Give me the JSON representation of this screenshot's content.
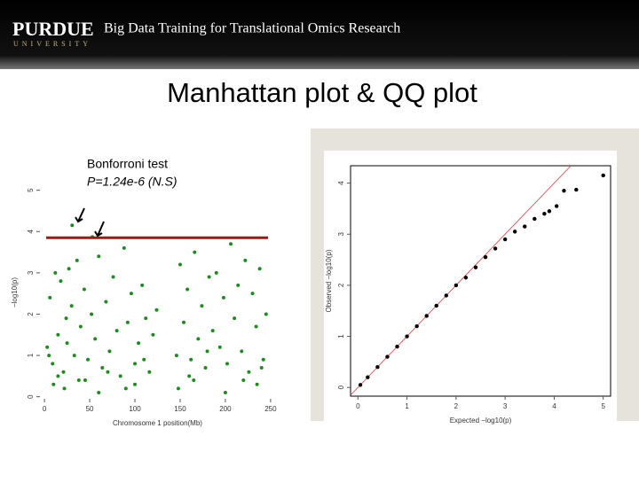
{
  "header": {
    "logo": "PURDUE",
    "logo_sub": "UNIVERSITY",
    "course": "Big Data Training for Translational Omics Research"
  },
  "title": "Manhattan plot & QQ plot",
  "chart_data": [
    {
      "type": "scatter",
      "annotation": "Bonforroni test",
      "annotation2": "P=1.24e-6 (N.S)",
      "xlabel": "Chromosome 1 position(Mb)",
      "ylabel": "−log10(p)",
      "color": "#1f8a1f",
      "threshold": 3.85,
      "threshold_color": "#a01818",
      "xlim": [
        -5,
        255
      ],
      "ylim": [
        -0.05,
        5.1
      ],
      "xticks": [
        0,
        50,
        100,
        150,
        200,
        250
      ],
      "yticks": [
        0,
        1,
        2,
        3,
        4,
        5
      ],
      "x": [
        3,
        6,
        9,
        12,
        15,
        18,
        21,
        24,
        27,
        30,
        33,
        36,
        40,
        44,
        48,
        52,
        56,
        60,
        64,
        68,
        72,
        76,
        80,
        84,
        88,
        92,
        96,
        100,
        104,
        108,
        112,
        116,
        120,
        124,
        146,
        150,
        154,
        158,
        162,
        166,
        170,
        174,
        178,
        182,
        186,
        190,
        194,
        198,
        202,
        206,
        210,
        214,
        218,
        222,
        226,
        230,
        234,
        238,
        242,
        245,
        30.6,
        53,
        10,
        22,
        38,
        60,
        100,
        148,
        165,
        200,
        235,
        5,
        15,
        25,
        45,
        70,
        90,
        110,
        160,
        180,
        220,
        240
      ],
      "values": [
        1.2,
        2.4,
        0.8,
        3.0,
        1.5,
        2.8,
        0.6,
        1.9,
        3.1,
        2.2,
        1.0,
        3.3,
        1.7,
        2.6,
        0.9,
        2.0,
        1.4,
        3.4,
        0.7,
        2.3,
        1.1,
        2.9,
        1.6,
        0.5,
        3.6,
        1.8,
        2.5,
        0.8,
        1.3,
        2.7,
        1.9,
        0.6,
        1.5,
        2.1,
        1.0,
        3.2,
        1.8,
        2.6,
        0.9,
        3.5,
        1.4,
        2.2,
        0.7,
        2.9,
        1.6,
        3.0,
        1.2,
        2.4,
        0.8,
        3.7,
        1.9,
        2.7,
        1.1,
        3.3,
        0.6,
        2.5,
        1.7,
        3.1,
        0.9,
        2.0,
        4.15,
        3.87,
        0.3,
        0.2,
        0.4,
        0.1,
        0.3,
        0.2,
        0.4,
        0.1,
        0.3,
        1.0,
        0.5,
        1.3,
        0.4,
        0.6,
        0.2,
        0.9,
        0.5,
        1.1,
        0.4,
        0.7
      ]
    },
    {
      "type": "qq",
      "xlabel": "Expected −log10(p)",
      "ylabel": "Observed −log10(p)",
      "color": "#000000",
      "line_color": "#d04040",
      "xlim": [
        -0.15,
        5.15
      ],
      "ylim": [
        -0.17,
        4.34
      ],
      "xticks": [
        0,
        1,
        2,
        3,
        4,
        5
      ],
      "yticks": [
        0,
        1,
        2,
        3,
        4
      ],
      "x": [
        0.05,
        0.2,
        0.4,
        0.6,
        0.8,
        1.0,
        1.2,
        1.4,
        1.6,
        1.8,
        2.0,
        2.2,
        2.4,
        2.6,
        2.8,
        3.0,
        3.2,
        3.4,
        3.6,
        3.8,
        3.9,
        4.05,
        4.2,
        4.45,
        5.0
      ],
      "values": [
        0.05,
        0.2,
        0.4,
        0.6,
        0.8,
        1.0,
        1.2,
        1.4,
        1.6,
        1.8,
        2.0,
        2.15,
        2.35,
        2.55,
        2.72,
        2.9,
        3.05,
        3.15,
        3.3,
        3.4,
        3.45,
        3.55,
        3.85,
        3.87,
        4.15
      ]
    }
  ]
}
